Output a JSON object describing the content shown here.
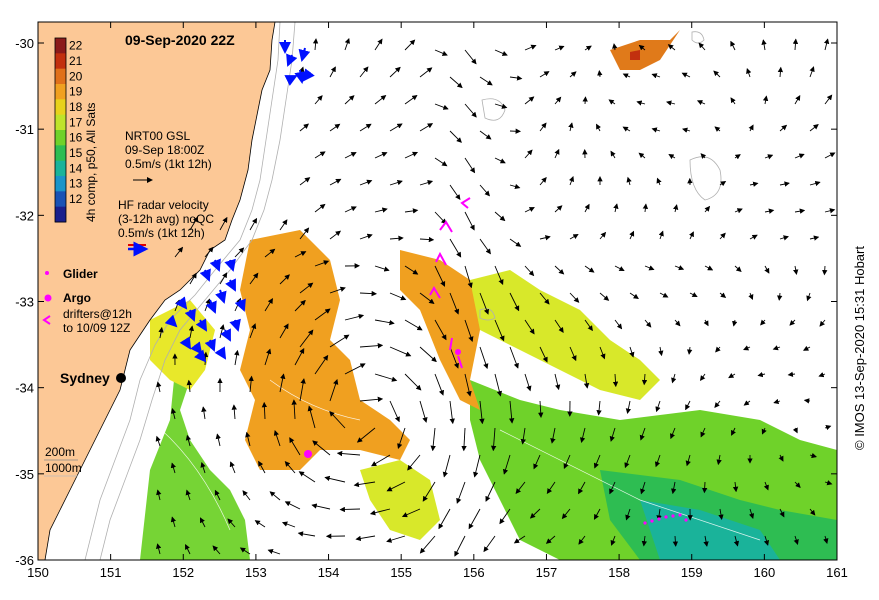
{
  "title": "09-Sep-2020 22Z",
  "credit": "© IMOS 13-Sep-2020 15:31 Hobart",
  "colorbar": {
    "label": "4h comp, p50, All Sats",
    "ticks": [
      "22",
      "21",
      "20",
      "19",
      "18",
      "17",
      "16",
      "15",
      "14",
      "13",
      "12"
    ],
    "colors": [
      "#8b1a1a",
      "#c2300f",
      "#e0701a",
      "#f0a020",
      "#e8d21c",
      "#bfe32a",
      "#6fd22a",
      "#2ebd52",
      "#1ab39a",
      "#1a94c9",
      "#1a52b5",
      "#1a1f8c"
    ]
  },
  "legend": {
    "gsl": {
      "line1": "NRT00 GSL",
      "line2": "09-Sep 18:00Z",
      "line3": "0.5m/s (1kt 12h)"
    },
    "radar": {
      "line1": "HF radar velocity",
      "line2": "(3-12h avg) noQC",
      "line3": "0.5m/s (1kt 12h)"
    },
    "glider": "Glider",
    "argo": "Argo",
    "drifters": {
      "line1": "drifters@12h",
      "line2": "to 10/09 12Z"
    },
    "depth": {
      "line1": "200m",
      "line2": "1000m"
    }
  },
  "place": {
    "name": "Sydney"
  },
  "axes": {
    "x_ticks": [
      "150",
      "151",
      "152",
      "153",
      "154",
      "155",
      "156",
      "157",
      "158",
      "159",
      "160",
      "161"
    ],
    "y_ticks": [
      "-30",
      "-31",
      "-32",
      "-33",
      "-34",
      "-35",
      "-36"
    ]
  },
  "colors": {
    "land": "#fcc896",
    "orange": "#f0a020",
    "yellow": "#e0e830",
    "green": "#6fd22a",
    "teal": "#2ebd52",
    "magenta": "#ff00ff",
    "radar_blue": "#0010ff"
  }
}
